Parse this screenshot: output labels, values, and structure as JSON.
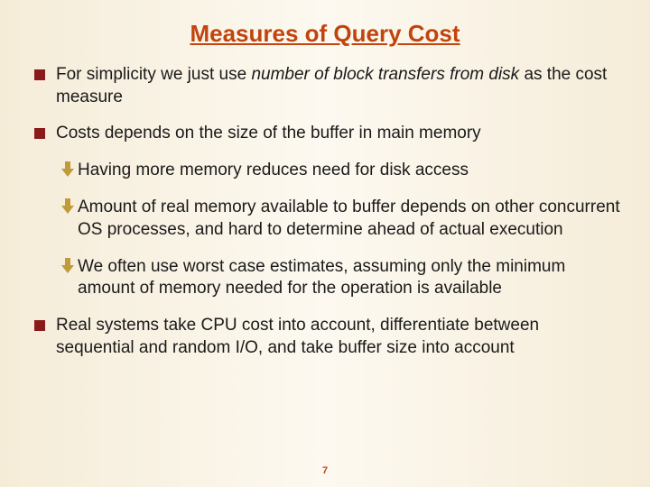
{
  "title": {
    "text": "Measures of Query Cost",
    "color": "#c1440e",
    "fontsize": 26
  },
  "body": {
    "color": "#1a1a1a",
    "fontsize": 19
  },
  "bullets": {
    "square_color": "#8b1a1a",
    "arrow_color": "#c19a3a",
    "arrow_fontsize": 22,
    "items": [
      {
        "level": 1,
        "runs": [
          {
            "t": "For simplicity we just use "
          },
          {
            "t": "number of block transfers from disk",
            "italic": true
          },
          {
            "t": "  as the cost measure"
          }
        ]
      },
      {
        "level": 1,
        "runs": [
          {
            "t": "Costs depends on the size of the buffer in main memory"
          }
        ]
      },
      {
        "level": 2,
        "runs": [
          {
            "t": "Having more memory reduces need for disk access"
          }
        ]
      },
      {
        "level": 2,
        "runs": [
          {
            "t": "Amount of real memory available to buffer depends on other concurrent OS processes, and hard to determine ahead of actual execution"
          }
        ]
      },
      {
        "level": 2,
        "runs": [
          {
            "t": "We often use worst case estimates, assuming only the minimum amount of memory needed for the operation is available"
          }
        ]
      },
      {
        "level": 1,
        "runs": [
          {
            "t": "Real systems take CPU cost into account, differentiate between sequential and random I/O, and take buffer size into account"
          }
        ]
      }
    ]
  },
  "page_number": {
    "text": "7",
    "color": "#c1440e",
    "fontsize": 11
  }
}
